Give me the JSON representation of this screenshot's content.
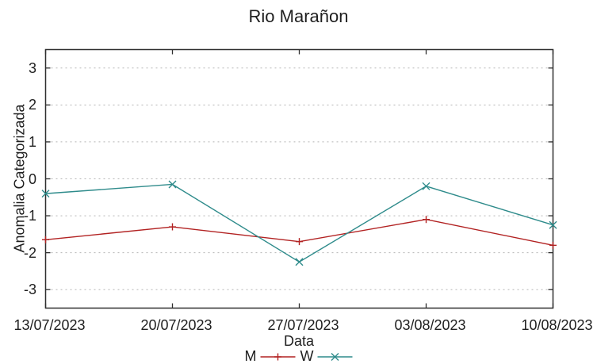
{
  "chart_data": {
    "type": "line",
    "title": "Rio Marañon",
    "xlabel": "Data",
    "ylabel": "Anomalia Categorizada",
    "categories": [
      "13/07/2023",
      "20/07/2023",
      "27/07/2023",
      "03/08/2023",
      "10/08/2023"
    ],
    "series": [
      {
        "name": "M",
        "marker": "plus",
        "color": "#b22222",
        "values": [
          -1.65,
          -1.3,
          -1.7,
          -1.1,
          -1.8
        ]
      },
      {
        "name": "W",
        "marker": "cross",
        "color": "#2e8b8b",
        "values": [
          -0.4,
          -0.15,
          -2.25,
          -0.2,
          -1.25
        ]
      }
    ],
    "yticks": [
      3,
      2,
      1,
      0,
      -1,
      -2,
      -3
    ],
    "ytick_labels": [
      "3",
      "2",
      "1",
      "0",
      "-1",
      "-2",
      "-3"
    ],
    "ylim": [
      -3.5,
      3.5
    ],
    "grid": "horizontal-dashed",
    "legend_position": "bottom-center"
  },
  "colors": {
    "background": "#ffffff",
    "axis": "#2f2f2f",
    "grid": "#b5b5b5",
    "text": "#1f1f1f",
    "series_m": "#b22222",
    "series_w": "#2e8b8b"
  }
}
